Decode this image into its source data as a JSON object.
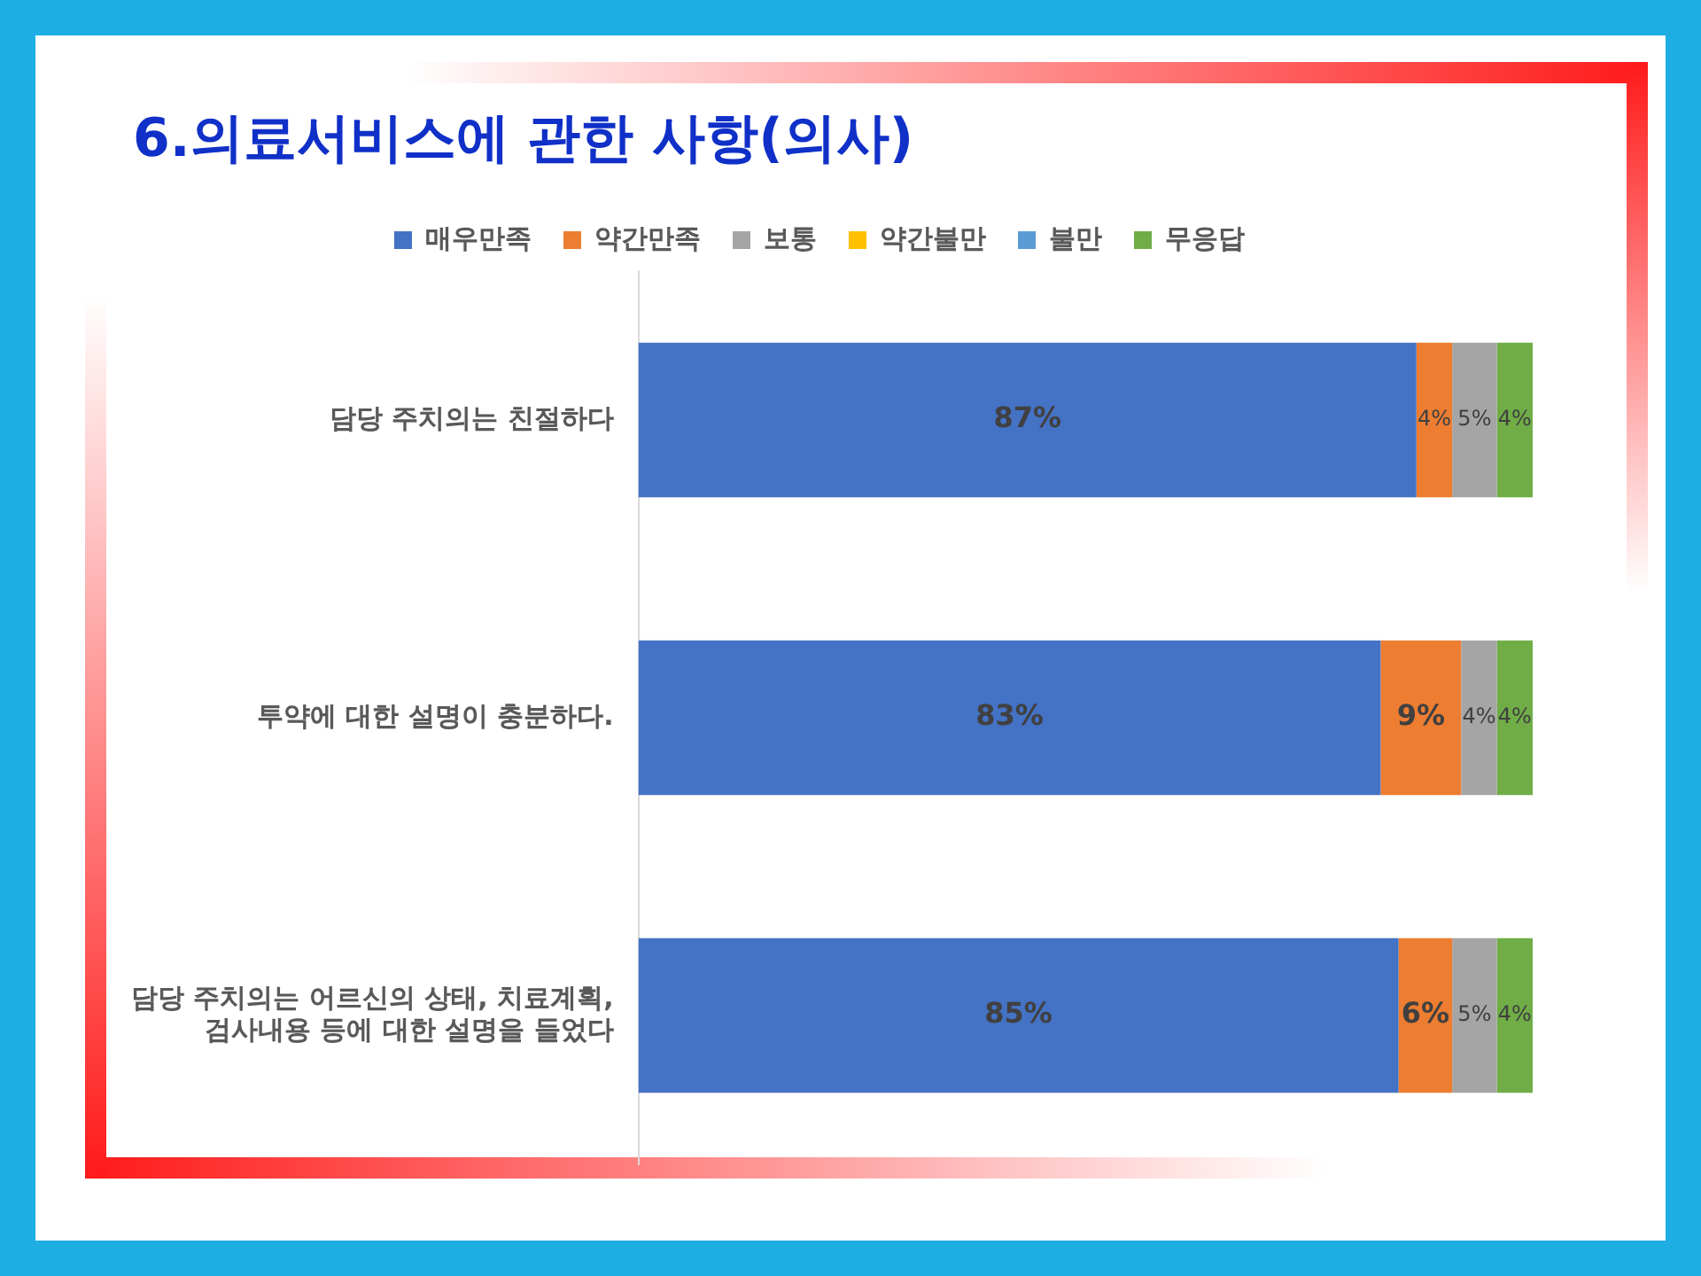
{
  "chart_data": {
    "type": "bar",
    "orientation": "horizontal",
    "stacked": true,
    "title": "6.의료서비스에 관한 사항(의사)",
    "tick_labels": "y",
    "legend": "top",
    "grid": false,
    "categories": [
      "담당 주치의는 친절하다",
      "투약에 대한 설명이 충분하다.",
      "담당 주치의는 어르신의 상태, 치료계획,\n검사내용 등에 대한 설명을 들었다"
    ],
    "series": [
      {
        "name": "매우만족",
        "color": "#4472c4",
        "values": [
          87,
          83,
          85
        ],
        "value_labels": [
          "87%",
          "83%",
          "85%"
        ]
      },
      {
        "name": "약간만족",
        "color": "#ed7d31",
        "values": [
          4,
          9,
          6
        ],
        "value_labels": [
          "4%",
          "9%",
          "6%"
        ]
      },
      {
        "name": "보통",
        "color": "#a5a5a5",
        "values": [
          5,
          4,
          5
        ],
        "value_labels": [
          "5%",
          "4%",
          "5%"
        ]
      },
      {
        "name": "약간불만",
        "color": "#ffc000",
        "values": [
          0,
          0,
          0
        ],
        "value_labels": [
          null,
          null,
          null
        ]
      },
      {
        "name": "불만",
        "color": "#5b9bd5",
        "values": [
          0,
          0,
          0
        ],
        "value_labels": [
          null,
          null,
          null
        ]
      },
      {
        "name": "무응답",
        "color": "#70ad47",
        "values": [
          4,
          4,
          4
        ],
        "value_labels": [
          "4%",
          "4%",
          "4%"
        ]
      }
    ]
  }
}
